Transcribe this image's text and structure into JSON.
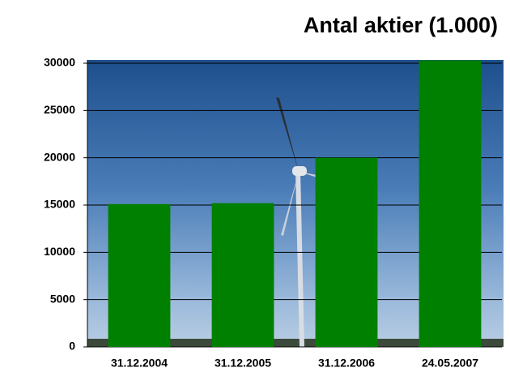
{
  "chart_data": {
    "type": "bar",
    "title": "Antal aktier (1.000)",
    "categories": [
      "31.12.2004",
      "31.12.2005",
      "31.12.2006",
      "24.05.2007"
    ],
    "values": [
      15100,
      15200,
      20000,
      30300
    ],
    "color": "#008000",
    "ylim": [
      0,
      30000
    ],
    "yticks": [
      0,
      5000,
      10000,
      15000,
      20000,
      25000,
      30000
    ],
    "grid": true
  }
}
